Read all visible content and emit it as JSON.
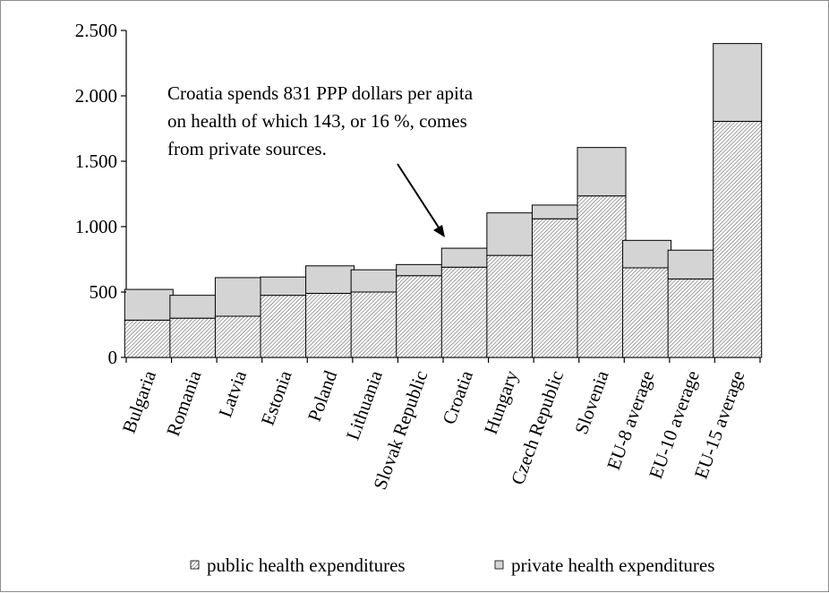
{
  "chart_data": {
    "type": "bar",
    "stacked": true,
    "categories": [
      "Bulgaria",
      "Romania",
      "Latvia",
      "Estonia",
      "Poland",
      "Lithuania",
      "Slovak Republic",
      "Croatia",
      "Hungary",
      "Czech Republic",
      "Slovenia",
      "EU-8 average",
      "EU-10 average",
      "EU-15 average"
    ],
    "series": [
      {
        "name": "public health expenditures",
        "values": [
          285,
          300,
          315,
          475,
          490,
          500,
          625,
          690,
          780,
          1060,
          1235,
          685,
          600,
          1805
        ],
        "pattern": "hatch"
      },
      {
        "name": "private health expenditures",
        "values": [
          235,
          175,
          295,
          140,
          210,
          170,
          85,
          145,
          325,
          105,
          370,
          210,
          220,
          595
        ],
        "color": "#d4d4d4"
      }
    ],
    "ylim": [
      0,
      2500
    ],
    "yticks": [
      0,
      500,
      1000,
      1500,
      2000,
      2500
    ],
    "ytick_labels": [
      "0",
      "500",
      "1.000",
      "1.500",
      "2.000",
      "2.500"
    ],
    "xlabel": "",
    "ylabel": "",
    "annotation": {
      "lines": [
        "Croatia spends 831 PPP dollars per apita",
        "on health of which 143, or 16 %, comes",
        "from private sources."
      ],
      "points_to": "Croatia"
    },
    "legend_position": "bottom",
    "grid": false
  }
}
